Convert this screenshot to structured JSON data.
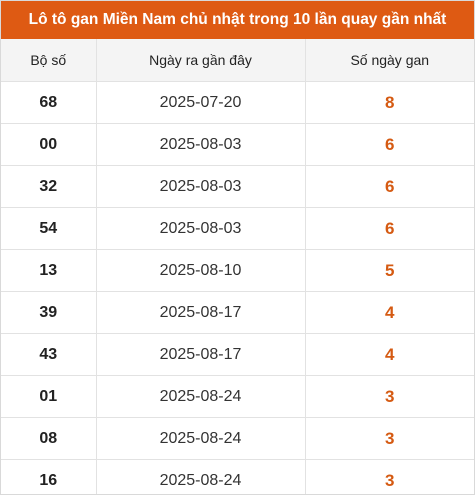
{
  "title": "Lô tô gan Miền Nam chủ nhật trong 10 lần quay gần nhất",
  "accent_color": "#de5a13",
  "columns": [
    "Bộ số",
    "Ngày ra gần đây",
    "Số ngày gan"
  ],
  "rows": [
    {
      "num": "68",
      "date": "2025-07-20",
      "days": "8"
    },
    {
      "num": "00",
      "date": "2025-08-03",
      "days": "6"
    },
    {
      "num": "32",
      "date": "2025-08-03",
      "days": "6"
    },
    {
      "num": "54",
      "date": "2025-08-03",
      "days": "6"
    },
    {
      "num": "13",
      "date": "2025-08-10",
      "days": "5"
    },
    {
      "num": "39",
      "date": "2025-08-17",
      "days": "4"
    },
    {
      "num": "43",
      "date": "2025-08-17",
      "days": "4"
    },
    {
      "num": "01",
      "date": "2025-08-24",
      "days": "3"
    },
    {
      "num": "08",
      "date": "2025-08-24",
      "days": "3"
    },
    {
      "num": "16",
      "date": "2025-08-24",
      "days": "3"
    }
  ]
}
